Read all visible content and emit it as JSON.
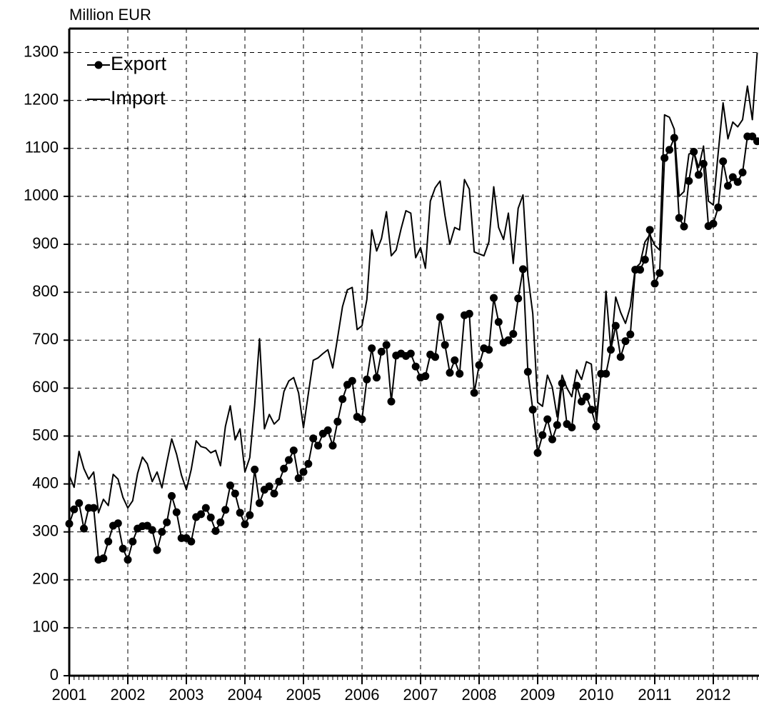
{
  "chart_data": {
    "type": "line",
    "y_label": "Million EUR",
    "x": [
      2001,
      2001.083,
      2001.167,
      2001.25,
      2001.333,
      2001.417,
      2001.5,
      2001.583,
      2001.667,
      2001.75,
      2001.833,
      2001.917,
      2002,
      2002.083,
      2002.167,
      2002.25,
      2002.333,
      2002.417,
      2002.5,
      2002.583,
      2002.667,
      2002.75,
      2002.833,
      2002.917,
      2003,
      2003.083,
      2003.167,
      2003.25,
      2003.333,
      2003.417,
      2003.5,
      2003.583,
      2003.667,
      2003.75,
      2003.833,
      2003.917,
      2004,
      2004.083,
      2004.167,
      2004.25,
      2004.333,
      2004.417,
      2004.5,
      2004.583,
      2004.667,
      2004.75,
      2004.833,
      2004.917,
      2005,
      2005.083,
      2005.167,
      2005.25,
      2005.333,
      2005.417,
      2005.5,
      2005.583,
      2005.667,
      2005.75,
      2005.833,
      2005.917,
      2006,
      2006.083,
      2006.167,
      2006.25,
      2006.333,
      2006.417,
      2006.5,
      2006.583,
      2006.667,
      2006.75,
      2006.833,
      2006.917,
      2007,
      2007.083,
      2007.167,
      2007.25,
      2007.333,
      2007.417,
      2007.5,
      2007.583,
      2007.667,
      2007.75,
      2007.833,
      2007.917,
      2008,
      2008.083,
      2008.167,
      2008.25,
      2008.333,
      2008.417,
      2008.5,
      2008.583,
      2008.667,
      2008.75,
      2008.833,
      2008.917,
      2009,
      2009.083,
      2009.167,
      2009.25,
      2009.333,
      2009.417,
      2009.5,
      2009.583,
      2009.667,
      2009.75,
      2009.833,
      2009.917,
      2010,
      2010.083,
      2010.167,
      2010.25,
      2010.333,
      2010.417,
      2010.5,
      2010.583,
      2010.667,
      2010.75,
      2010.833,
      2010.917,
      2011,
      2011.083,
      2011.167,
      2011.25,
      2011.333,
      2011.417,
      2011.5,
      2011.583,
      2011.667,
      2011.75,
      2011.833,
      2011.917,
      2012,
      2012.083,
      2012.167,
      2012.25,
      2012.333,
      2012.417,
      2012.5,
      2012.583,
      2012.667,
      2012.75
    ],
    "series": [
      {
        "name": "Export",
        "color": "#000000",
        "marker": "circle",
        "values": [
          317,
          347,
          360,
          307,
          350,
          350,
          242,
          245,
          280,
          313,
          318,
          265,
          242,
          280,
          307,
          312,
          313,
          304,
          262,
          300,
          320,
          375,
          341,
          287,
          287,
          280,
          331,
          337,
          350,
          330,
          302,
          320,
          346,
          397,
          380,
          340,
          316,
          335,
          430,
          360,
          388,
          395,
          380,
          405,
          432,
          450,
          470,
          412,
          425,
          442,
          495,
          480,
          505,
          512,
          480,
          530,
          577,
          607,
          615,
          540,
          535,
          618,
          683,
          622,
          676,
          690,
          572,
          668,
          672,
          667,
          672,
          645,
          622,
          625,
          670,
          665,
          748,
          690,
          632,
          658,
          630,
          752,
          755,
          590,
          648,
          683,
          680,
          788,
          738,
          695,
          700,
          713,
          787,
          848,
          634,
          555,
          465,
          502,
          535,
          493,
          523,
          610,
          525,
          518,
          605,
          572,
          582,
          555,
          520,
          630,
          630,
          680,
          730,
          665,
          698,
          712,
          847,
          847,
          868,
          930,
          818,
          840,
          1080,
          1097,
          1122,
          955,
          937,
          1032,
          1093,
          1045,
          1068,
          938,
          943,
          977,
          1073,
          1022,
          1040,
          1030,
          1050,
          1125,
          1125,
          1115
        ]
      },
      {
        "name": "Import",
        "color": "#000000",
        "marker": "none",
        "values": [
          418,
          393,
          468,
          432,
          410,
          425,
          340,
          368,
          355,
          420,
          410,
          372,
          350,
          365,
          422,
          456,
          442,
          405,
          425,
          392,
          445,
          494,
          462,
          418,
          388,
          430,
          490,
          478,
          475,
          465,
          470,
          438,
          520,
          563,
          492,
          515,
          425,
          455,
          565,
          703,
          515,
          545,
          525,
          535,
          593,
          615,
          622,
          590,
          517,
          588,
          658,
          663,
          672,
          680,
          642,
          705,
          770,
          805,
          810,
          722,
          730,
          785,
          930,
          886,
          912,
          968,
          876,
          888,
          932,
          970,
          965,
          872,
          893,
          850,
          990,
          1018,
          1032,
          960,
          900,
          935,
          930,
          1035,
          1015,
          884,
          880,
          876,
          905,
          1020,
          935,
          910,
          965,
          860,
          975,
          1003,
          835,
          755,
          570,
          562,
          627,
          602,
          540,
          627,
          600,
          582,
          638,
          618,
          655,
          650,
          535,
          630,
          802,
          680,
          790,
          758,
          735,
          770,
          850,
          860,
          905,
          920,
          898,
          888,
          1170,
          1165,
          1140,
          1000,
          1010,
          1088,
          1093,
          1060,
          1105,
          990,
          982,
          1090,
          1195,
          1120,
          1155,
          1145,
          1160,
          1230,
          1160,
          1300
        ]
      }
    ],
    "xlim": [
      2001,
      2012.78
    ],
    "xticks": [
      2001,
      2002,
      2003,
      2004,
      2005,
      2006,
      2007,
      2008,
      2009,
      2010,
      2011,
      2012
    ],
    "ylim": [
      0,
      1350
    ],
    "yticks": [
      0,
      100,
      200,
      300,
      400,
      500,
      600,
      700,
      800,
      900,
      1000,
      1100,
      1200,
      1300
    ],
    "grid": true,
    "legend": "upper-left"
  }
}
